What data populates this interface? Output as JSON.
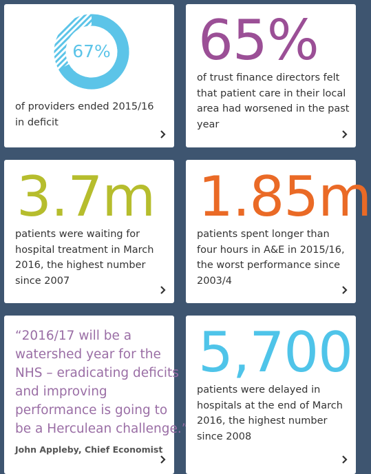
{
  "cards": [
    {
      "donut": {
        "value": 67,
        "label": "67%"
      },
      "lines": [
        "of providers ended 2015/16",
        "in deficit"
      ]
    },
    {
      "stat": "65%",
      "lines": [
        "of trust finance directors felt",
        "that patient care in their local",
        "area had worsened in the past",
        "year"
      ]
    },
    {
      "stat": "3.7m",
      "lines": [
        "patients were waiting for",
        "hospital treatment in March",
        "2016, the highest number",
        "since 2007"
      ]
    },
    {
      "stat": "1.85m",
      "lines": [
        "patients spent longer than",
        "four hours in A&E in 2015/16,",
        "the worst performance since",
        "2003/4"
      ]
    },
    {
      "quote": [
        "“2016/17 will be a",
        "watershed year for the",
        "NHS – eradicating deficits",
        "and improving",
        "performance is going to",
        "be a Herculean challenge.”"
      ],
      "author": "John Appleby, Chief Economist"
    },
    {
      "stat": "5,700",
      "lines": [
        "patients were delayed in",
        "hospitals at the end of March",
        "2016, the highest number",
        "since 2008"
      ]
    }
  ]
}
